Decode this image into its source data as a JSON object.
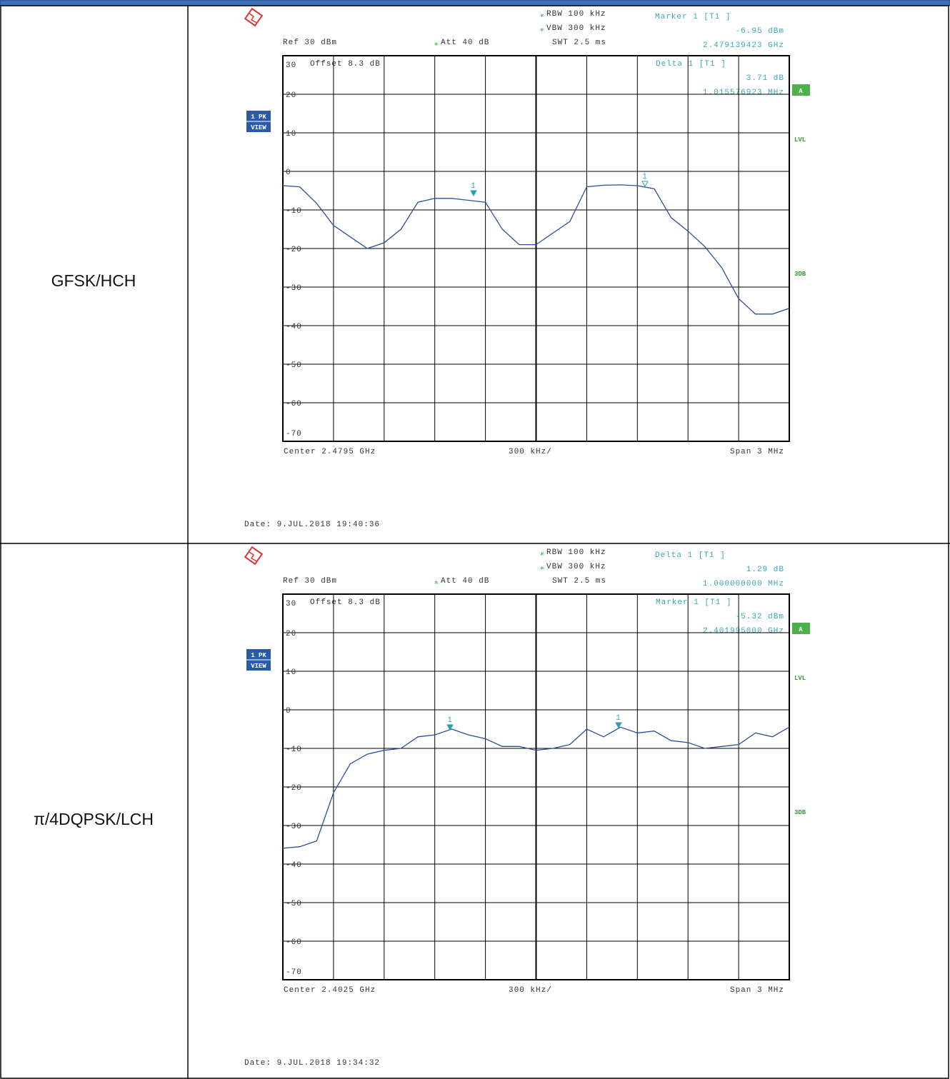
{
  "table": {
    "rows": [
      {
        "label": "GFSK/HCH",
        "chart": {
          "type": "line",
          "header": {
            "rbw": "RBW 100 kHz",
            "vbw": "VBW 300 kHz",
            "swt": "SWT 2.5 ms",
            "ref": "Ref 30 dBm",
            "att": "Att 40 dB",
            "offset": "Offset 8.3 dB"
          },
          "readout_top": [
            "Marker 1 [T1 ]",
            "-6.95 dBm",
            "2.479139423 GHz"
          ],
          "readout_inner": [
            "Delta 1 [T1 ]",
            "3.71 dB",
            "1.015576923 MHz"
          ],
          "badges": {
            "trace": "1 PK",
            "view": "VIEW",
            "a": "A",
            "lvl": "LVL",
            "db": "3DB"
          },
          "marker_labels": [
            "1",
            "1"
          ],
          "footer": {
            "center": "Center 2.4795 GHz",
            "div": "300 kHz/",
            "span": "Span 3 MHz",
            "date": "Date: 9.JUL.2018 19:40:36"
          },
          "ylim": [
            -70,
            30
          ],
          "yticks": [
            30,
            20,
            10,
            0,
            -10,
            -20,
            -30,
            -40,
            -50,
            -60,
            -70
          ],
          "series": [
            {
              "color": "#2b4d9e",
              "values": [
                -3.7,
                -4,
                -8.3,
                -14,
                -17,
                -20,
                -18.5,
                -15,
                -8,
                -7,
                -7,
                -7.5,
                -8,
                -15,
                -19,
                -19,
                -16,
                -13,
                -4,
                -3.6,
                -3.5,
                -3.7,
                -4.5,
                -12,
                -15.5,
                -19.5,
                -25,
                -33,
                -37,
                -37,
                -35.5
              ]
            }
          ]
        }
      },
      {
        "label": "π/4DQPSK/LCH",
        "chart": {
          "type": "line",
          "header": {
            "rbw": "RBW 100 kHz",
            "vbw": "VBW 300 kHz",
            "swt": "SWT 2.5 ms",
            "ref": "Ref 30 dBm",
            "att": "Att 40 dB",
            "offset": "Offset 8.3 dB"
          },
          "readout_top": [
            "Delta 1 [T1 ]",
            "1.29 dB",
            "1.000000000 MHz"
          ],
          "readout_inner": [
            "Marker 1 [T1 ]",
            "-5.32 dBm",
            "2.401995000 GHz"
          ],
          "badges": {
            "trace": "1 PK",
            "view": "VIEW",
            "a": "A",
            "lvl": "LVL",
            "db": "3DB"
          },
          "marker_labels": [
            "1",
            "1"
          ],
          "footer": {
            "center": "Center 2.4025 GHz",
            "div": "300 kHz/",
            "span": "Span 3 MHz",
            "date": "Date: 9.JUL.2018 19:34:32"
          },
          "ylim": [
            -70,
            30
          ],
          "yticks": [
            30,
            20,
            10,
            0,
            -10,
            -20,
            -30,
            -40,
            -50,
            -60,
            -70
          ],
          "series": [
            {
              "color": "#2b4d9e",
              "values": [
                -35.9,
                -35.5,
                -34,
                -21.5,
                -14,
                -11.5,
                -10.5,
                -10,
                -7,
                -6.5,
                -5,
                -6.5,
                -7.5,
                -9.5,
                -9.5,
                -10.5,
                -10,
                -9,
                -5,
                -7,
                -4.5,
                -6,
                -5.5,
                -8,
                -8.5,
                -10,
                -9.5,
                -9,
                -6,
                -7,
                -4.5
              ]
            }
          ]
        }
      }
    ]
  }
}
